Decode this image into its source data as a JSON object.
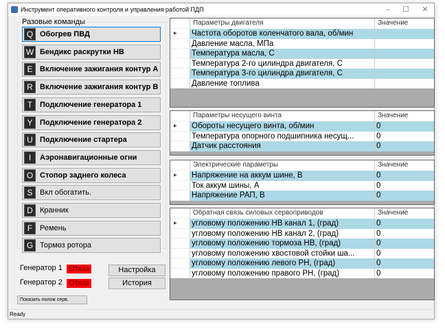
{
  "window": {
    "title": "Инструмент оперативного контроля и управления работой ПДП",
    "min": "–",
    "max": "☐",
    "close": "✕"
  },
  "commands": {
    "label": "Разовые команды",
    "items": [
      {
        "key": "Q",
        "label": "Обогрев ПВД",
        "bold": true
      },
      {
        "key": "W",
        "label": "Бендикс раскрутки НВ",
        "bold": true
      },
      {
        "key": "E",
        "label": "Включение зажигания контур А",
        "bold": true
      },
      {
        "key": "R",
        "label": "Включение зажигания контур В",
        "bold": true
      },
      {
        "key": "T",
        "label": "Подключение генератора 1",
        "bold": true
      },
      {
        "key": "Y",
        "label": "Подключение генератора 2",
        "bold": true
      },
      {
        "key": "U",
        "label": "Подключение стартера",
        "bold": true
      },
      {
        "key": "I",
        "label": "Аэронавигационные огни",
        "bold": true
      },
      {
        "key": "O",
        "label": "Стопор заднего колеса",
        "bold": true
      },
      {
        "key": "S",
        "label": "Вкл обогатить.",
        "bold": false
      },
      {
        "key": "D",
        "label": "Кранник",
        "bold": false
      },
      {
        "key": "F",
        "label": "Ремень",
        "bold": false
      },
      {
        "key": "G",
        "label": "Тормоз ротора",
        "bold": false
      }
    ]
  },
  "generators": [
    {
      "label": "Генератор 1",
      "status": "Отказ"
    },
    {
      "label": "Генератор 2",
      "status": "Отказ"
    }
  ],
  "buttons": {
    "settings": "Настройка",
    "history": "История",
    "show_servo": "Показать полож серв."
  },
  "status": "Ready",
  "grids": [
    {
      "header": "Параметры двигателя",
      "value_header": "Значение",
      "rows": [
        {
          "name": "Частота оборотов коленчатого вала, об/мин",
          "value": ""
        },
        {
          "name": "Давление масла, МПа",
          "value": ""
        },
        {
          "name": "Температура масла, С",
          "value": ""
        },
        {
          "name": "Температура 2-го цилиндра двигателя, С",
          "value": ""
        },
        {
          "name": "Температура 3-го цилиндра двигателя, С",
          "value": ""
        },
        {
          "name": "Давление топлива",
          "value": ""
        }
      ]
    },
    {
      "header": "Параметры несущего винта",
      "value_header": "Значение",
      "rows": [
        {
          "name": "Обороты несущего винта, об/мин",
          "value": "0"
        },
        {
          "name": "Температура опорного подшипника несущ...",
          "value": "0"
        },
        {
          "name": "Датчик расстояния",
          "value": "0"
        }
      ]
    },
    {
      "header": "Электрические параметры",
      "value_header": "Значение",
      "rows": [
        {
          "name": "Напряжение на аккум шине, В",
          "value": "0"
        },
        {
          "name": "Ток аккум шины, А",
          "value": "0"
        },
        {
          "name": "Напряжение РАП, В",
          "value": "0"
        }
      ]
    },
    {
      "header": "Обратная связь силовых сервоприводов",
      "value_header": "Значение",
      "rows": [
        {
          "name": "угловому положению НВ канал 1, (град)",
          "value": "0"
        },
        {
          "name": "угловому положению НВ канал 2, (град)",
          "value": "0"
        },
        {
          "name": "угловому положению тормоза НВ, (град)",
          "value": "0"
        },
        {
          "name": "угловому положению хвостовой стойки ша...",
          "value": "0"
        },
        {
          "name": "угловому положению левого РН, (град)",
          "value": "0"
        },
        {
          "name": "угловому положению правого РН, (град)",
          "value": "0"
        }
      ]
    }
  ]
}
